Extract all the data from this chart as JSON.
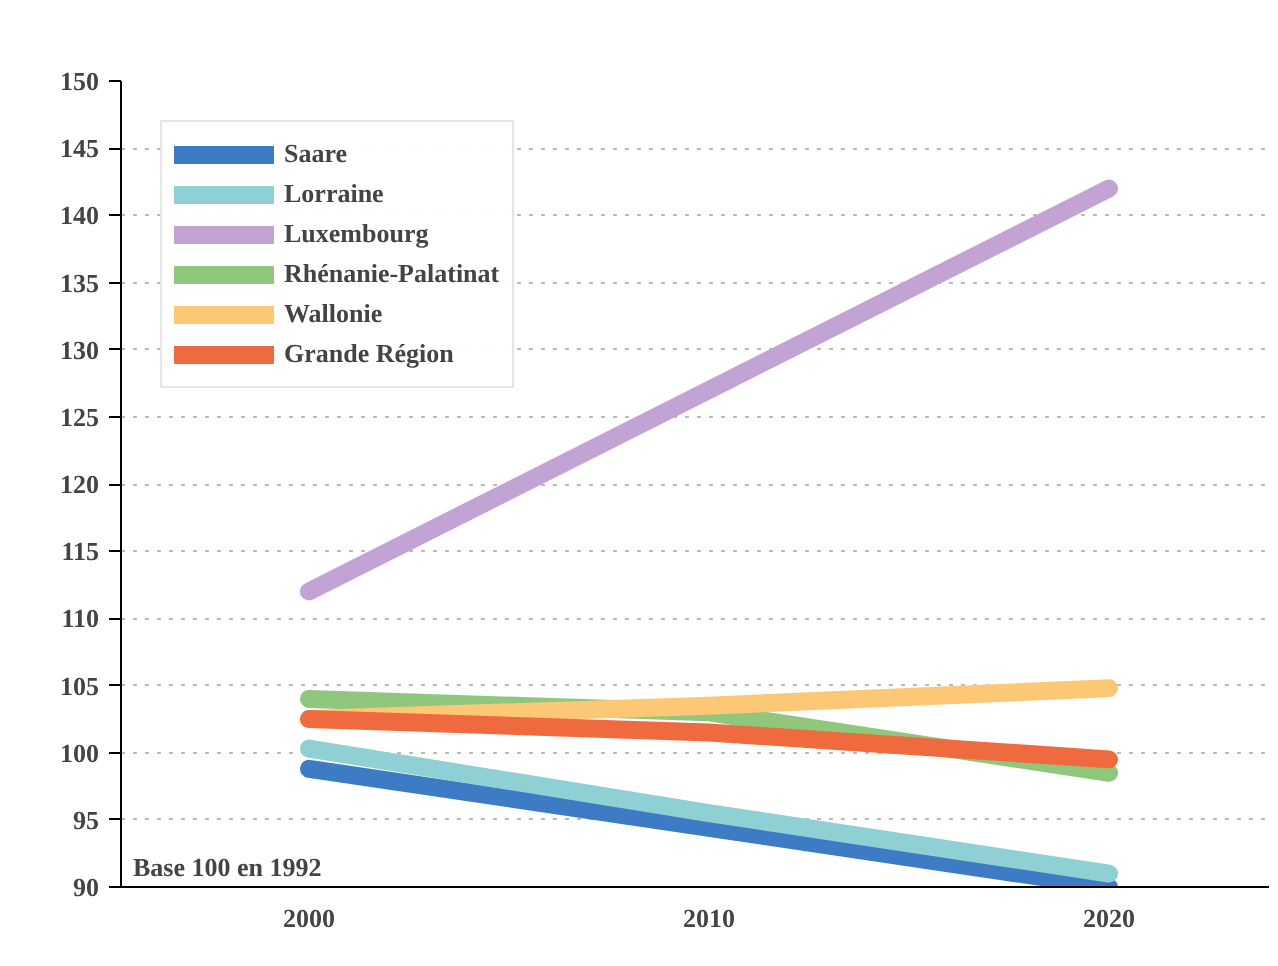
{
  "chart_data": {
    "type": "line",
    "categories": [
      "2000",
      "2010",
      "2020"
    ],
    "series": [
      {
        "name": "Saare",
        "color": "#3d7cc4",
        "values": [
          98.8,
          94.4,
          90
        ]
      },
      {
        "name": "Lorraine",
        "color": "#8fd0d4",
        "values": [
          100.3,
          95.5,
          91
        ]
      },
      {
        "name": "Luxembourg",
        "color": "#c3a3d3",
        "values": [
          112,
          127,
          142
        ]
      },
      {
        "name": "Rhénanie-Palatinat",
        "color": "#8fc77d",
        "values": [
          104,
          103,
          98.5
        ]
      },
      {
        "name": "Wallonie",
        "color": "#fdc875",
        "values": [
          102.5,
          103.5,
          104.8
        ]
      },
      {
        "name": "Grande Région",
        "color": "#f06a3f",
        "values": [
          102.5,
          101.5,
          99.5
        ]
      }
    ],
    "ylim": [
      90,
      150
    ],
    "yticks": [
      90,
      95,
      100,
      105,
      110,
      115,
      120,
      125,
      130,
      135,
      140,
      145,
      150
    ],
    "grid": "y",
    "legend": "top left",
    "marker": "none",
    "line_style": "solid",
    "annotations": [
      "Base 100 en 1992"
    ]
  }
}
